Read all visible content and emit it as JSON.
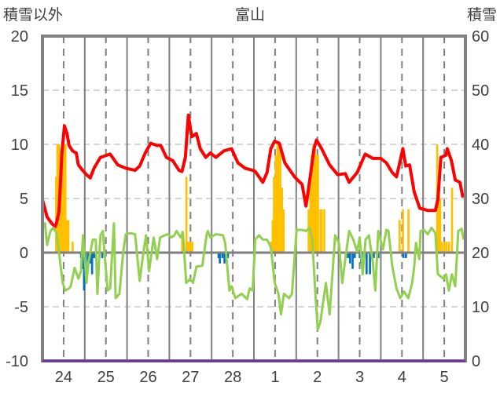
{
  "chart_data": {
    "type": "line",
    "title": "富山",
    "ylabel_left": "積雪以外",
    "ylabel_right": "積雪",
    "ylim_left": [
      -10,
      20
    ],
    "ylim_right": [
      0,
      60
    ],
    "yticks_left": [
      "-10",
      "-5",
      "0",
      "5",
      "10",
      "15",
      "20"
    ],
    "yticks_right": [
      "0",
      "10",
      "20",
      "30",
      "40",
      "50",
      "60"
    ],
    "xlim_days": [
      0,
      10
    ],
    "xticks": [
      "24",
      "25",
      "26",
      "27",
      "28",
      "1",
      "2",
      "3",
      "4",
      "5"
    ],
    "grid": true,
    "colors": {
      "temperature": "#ff0000",
      "green_series": "#92d050",
      "precip": "#ffc000",
      "snow_change": "#0070c0",
      "snow_depth": "#7030a0",
      "axis": "#808080"
    },
    "series": [
      {
        "name": "red",
        "axis": "left",
        "points": [
          [
            0,
            4.9
          ],
          [
            0.11,
            3.3
          ],
          [
            0.22,
            2.7
          ],
          [
            0.3,
            2.4
          ],
          [
            0.33,
            2.7
          ],
          [
            0.39,
            3.8
          ],
          [
            0.43,
            6.7
          ],
          [
            0.46,
            9.2
          ],
          [
            0.52,
            11.7
          ],
          [
            0.58,
            11
          ],
          [
            0.63,
            9.9
          ],
          [
            0.71,
            9.4
          ],
          [
            0.8,
            9.2
          ],
          [
            0.85,
            8.1
          ],
          [
            0.95,
            7.6
          ],
          [
            1.04,
            7.2
          ],
          [
            1.13,
            6.9
          ],
          [
            1.22,
            7.8
          ],
          [
            1.37,
            8.8
          ],
          [
            1.6,
            9.1
          ],
          [
            1.78,
            8.1
          ],
          [
            1.97,
            7.8
          ],
          [
            2.19,
            7.6
          ],
          [
            2.3,
            8.0
          ],
          [
            2.43,
            9.2
          ],
          [
            2.56,
            10.1
          ],
          [
            2.71,
            9.9
          ],
          [
            2.8,
            9.9
          ],
          [
            2.93,
            8.8
          ],
          [
            3.08,
            8.5
          ],
          [
            3.23,
            7.6
          ],
          [
            3.3,
            7.5
          ],
          [
            3.38,
            8.8
          ],
          [
            3.45,
            12.7
          ],
          [
            3.53,
            10.7
          ],
          [
            3.64,
            11
          ],
          [
            3.73,
            9.6
          ],
          [
            3.86,
            8.8
          ],
          [
            3.97,
            9.2
          ],
          [
            4.1,
            8.8
          ],
          [
            4.29,
            9.4
          ],
          [
            4.47,
            9.6
          ],
          [
            4.62,
            8.3
          ],
          [
            4.79,
            7.8
          ],
          [
            4.97,
            7.6
          ],
          [
            5.03,
            7.5
          ],
          [
            5.21,
            6.5
          ],
          [
            5.31,
            7.4
          ],
          [
            5.4,
            9.6
          ],
          [
            5.49,
            10.3
          ],
          [
            5.6,
            10.1
          ],
          [
            5.73,
            8.3
          ],
          [
            5.96,
            7.0
          ],
          [
            6.14,
            6.3
          ],
          [
            6.23,
            4.3
          ],
          [
            6.33,
            7.0
          ],
          [
            6.42,
            9.6
          ],
          [
            6.48,
            10.4
          ],
          [
            6.6,
            9.6
          ],
          [
            6.79,
            8.1
          ],
          [
            6.98,
            7.2
          ],
          [
            7.16,
            7.3
          ],
          [
            7.25,
            6.5
          ],
          [
            7.44,
            7.4
          ],
          [
            7.63,
            9.1
          ],
          [
            7.81,
            8.7
          ],
          [
            8.0,
            8.7
          ],
          [
            8.13,
            8.3
          ],
          [
            8.27,
            7.4
          ],
          [
            8.37,
            7.0
          ],
          [
            8.46,
            8.5
          ],
          [
            8.52,
            9.6
          ],
          [
            8.59,
            8.0
          ],
          [
            8.68,
            8.1
          ],
          [
            8.79,
            5.6
          ],
          [
            8.92,
            4.1
          ],
          [
            9.11,
            3.9
          ],
          [
            9.29,
            3.9
          ],
          [
            9.35,
            4.9
          ],
          [
            9.42,
            8.8
          ],
          [
            9.54,
            9.0
          ],
          [
            9.57,
            9.6
          ],
          [
            9.67,
            8.5
          ],
          [
            9.76,
            6.7
          ],
          [
            9.87,
            6.5
          ],
          [
            9.94,
            5.1
          ]
        ]
      },
      {
        "name": "green",
        "axis": "left",
        "points": [
          [
            0,
            2.3
          ],
          [
            0.06,
            2.7
          ],
          [
            0.11,
            0.7
          ],
          [
            0.19,
            2
          ],
          [
            0.26,
            2.3
          ],
          [
            0.33,
            1.8
          ],
          [
            0.41,
            -0.6
          ],
          [
            0.48,
            -2.8
          ],
          [
            0.54,
            -3.5
          ],
          [
            0.63,
            -3.3
          ],
          [
            0.67,
            -3.1
          ],
          [
            0.76,
            -1.4
          ],
          [
            0.85,
            -2.4
          ],
          [
            0.91,
            -1.7
          ],
          [
            0.96,
            1.6
          ],
          [
            1.04,
            -2.8
          ],
          [
            1.09,
            -0.9
          ],
          [
            1.19,
            1.2
          ],
          [
            1.26,
            1.2
          ],
          [
            1.3,
            -3.8
          ],
          [
            1.37,
            1.6
          ],
          [
            1.43,
            2
          ],
          [
            1.48,
            -0.6
          ],
          [
            1.54,
            -3.5
          ],
          [
            1.6,
            -3.3
          ],
          [
            1.69,
            2.7
          ],
          [
            1.73,
            -4.2
          ],
          [
            1.82,
            -3.8
          ],
          [
            1.91,
            0.1
          ],
          [
            1.97,
            1.7
          ],
          [
            2.08,
            1.8
          ],
          [
            2.19,
            1.7
          ],
          [
            2.3,
            -2.6
          ],
          [
            2.39,
            0.1
          ],
          [
            2.45,
            1.6
          ],
          [
            2.52,
            -1.7
          ],
          [
            2.63,
            1.4
          ],
          [
            2.71,
            -0.6
          ],
          [
            2.78,
            1.4
          ],
          [
            2.89,
            1.6
          ],
          [
            2.97,
            1.7
          ],
          [
            3.04,
            1.4
          ],
          [
            3.12,
            1.6
          ],
          [
            3.17,
            2
          ],
          [
            3.27,
            1.4
          ],
          [
            3.32,
            1.9
          ],
          [
            3.4,
            -2.8
          ],
          [
            3.49,
            -2.4
          ],
          [
            3.56,
            -2.8
          ],
          [
            3.64,
            -1.3
          ],
          [
            3.78,
            -1.2
          ],
          [
            3.88,
            1.6
          ],
          [
            3.91,
            2
          ],
          [
            3.97,
            1.4
          ],
          [
            4.1,
            1.7
          ],
          [
            4.27,
            1.6
          ],
          [
            4.32,
            0.9
          ],
          [
            4.42,
            -3.5
          ],
          [
            4.47,
            -3.1
          ],
          [
            4.56,
            -4.2
          ],
          [
            4.71,
            -3.8
          ],
          [
            4.84,
            -4.3
          ],
          [
            4.9,
            -3.3
          ],
          [
            4.97,
            -3.5
          ],
          [
            5.03,
            1.2
          ],
          [
            5.12,
            1.6
          ],
          [
            5.21,
            1.2
          ],
          [
            5.31,
            1.2
          ],
          [
            5.4,
            0.5
          ],
          [
            5.49,
            -2.8
          ],
          [
            5.58,
            -3.8
          ],
          [
            5.64,
            -5.7
          ],
          [
            5.71,
            -3.8
          ],
          [
            5.83,
            -4.2
          ],
          [
            5.9,
            -3.8
          ],
          [
            6.01,
            2.1
          ],
          [
            6.14,
            2.1
          ],
          [
            6.23,
            2
          ],
          [
            6.31,
            2.3
          ],
          [
            6.38,
            1.2
          ],
          [
            6.46,
            -4.2
          ],
          [
            6.51,
            -7.1
          ],
          [
            6.57,
            -6.4
          ],
          [
            6.7,
            -2.8
          ],
          [
            6.79,
            -5.7
          ],
          [
            6.92,
            1.6
          ],
          [
            7.01,
            0.9
          ],
          [
            7.09,
            -2.8
          ],
          [
            7.16,
            -0.6
          ],
          [
            7.25,
            2
          ],
          [
            7.35,
            1.2
          ],
          [
            7.44,
            0.1
          ],
          [
            7.5,
            1.4
          ],
          [
            7.57,
            -2.0
          ],
          [
            7.64,
            1.2
          ],
          [
            7.72,
            1.6
          ],
          [
            7.81,
            -0.9
          ],
          [
            7.87,
            -3.5
          ],
          [
            7.94,
            2
          ],
          [
            8.05,
            0.3
          ],
          [
            8.13,
            2.1
          ],
          [
            8.18,
            2
          ],
          [
            8.27,
            -1.2
          ],
          [
            8.37,
            -3.3
          ],
          [
            8.46,
            -4.2
          ],
          [
            8.55,
            -3.6
          ],
          [
            8.65,
            -4.2
          ],
          [
            8.74,
            -2.8
          ],
          [
            8.79,
            -1.3
          ],
          [
            8.83,
            0.9
          ],
          [
            8.91,
            -0.6
          ],
          [
            8.94,
            2
          ],
          [
            9.02,
            2.1
          ],
          [
            9.11,
            1.7
          ],
          [
            9.2,
            2.3
          ],
          [
            9.29,
            1.8
          ],
          [
            9.35,
            -2
          ],
          [
            9.48,
            -2.4
          ],
          [
            9.54,
            -2
          ],
          [
            9.61,
            -3.5
          ],
          [
            9.68,
            -2
          ],
          [
            9.76,
            -3.1
          ],
          [
            9.83,
            2
          ],
          [
            9.91,
            2.2
          ],
          [
            9.96,
            1.2
          ]
        ]
      },
      {
        "name": "snow-depth",
        "axis": "right",
        "points": [
          [
            0,
            0
          ],
          [
            10,
            0
          ]
        ]
      }
    ],
    "bars": [
      {
        "name": "orange",
        "axis": "left",
        "points": [
          [
            0.32,
            7
          ],
          [
            0.35,
            10
          ],
          [
            0.39,
            10
          ],
          [
            0.43,
            9
          ],
          [
            0.46,
            9
          ],
          [
            0.5,
            10
          ],
          [
            0.54,
            10
          ],
          [
            0.58,
            3
          ],
          [
            0.61,
            3
          ],
          [
            0.71,
            1
          ],
          [
            3.3,
            2
          ],
          [
            3.4,
            7
          ],
          [
            3.43,
            1
          ],
          [
            3.47,
            1
          ],
          [
            3.51,
            1
          ],
          [
            3.54,
            1
          ],
          [
            5.4,
            1
          ],
          [
            5.44,
            3
          ],
          [
            5.47,
            7
          ],
          [
            5.51,
            9
          ],
          [
            5.55,
            10
          ],
          [
            5.58,
            10
          ],
          [
            5.62,
            10
          ],
          [
            5.66,
            6
          ],
          [
            5.7,
            4
          ],
          [
            6.29,
            4
          ],
          [
            6.33,
            7
          ],
          [
            6.36,
            9
          ],
          [
            6.4,
            10
          ],
          [
            6.44,
            10
          ],
          [
            6.48,
            9
          ],
          [
            6.51,
            9
          ],
          [
            6.57,
            4
          ],
          [
            6.6,
            4
          ],
          [
            6.66,
            4
          ],
          [
            8.44,
            3
          ],
          [
            8.52,
            4
          ],
          [
            8.65,
            4
          ],
          [
            9.33,
            10
          ],
          [
            9.37,
            7
          ],
          [
            9.4,
            5
          ],
          [
            9.44,
            1
          ],
          [
            9.5,
            1
          ],
          [
            9.55,
            1
          ],
          [
            9.61,
            1
          ],
          [
            9.68,
            6
          ]
        ]
      },
      {
        "name": "blue",
        "axis": "left",
        "points": [
          [
            0.91,
            -0.5
          ],
          [
            0.95,
            -1.5
          ],
          [
            0.98,
            -3.5
          ],
          [
            1.02,
            -2.5
          ],
          [
            1.08,
            -1
          ],
          [
            1.13,
            -1
          ],
          [
            1.17,
            -2
          ],
          [
            1.22,
            -0.5
          ],
          [
            1.41,
            -0.5
          ],
          [
            4.16,
            -0.5
          ],
          [
            4.19,
            -1
          ],
          [
            4.25,
            -0.5
          ],
          [
            4.3,
            -1
          ],
          [
            4.38,
            -0.5
          ],
          [
            7.22,
            -0.5
          ],
          [
            7.27,
            -1
          ],
          [
            7.33,
            -1.5
          ],
          [
            7.38,
            -0.5
          ],
          [
            7.5,
            -0.5
          ],
          [
            7.53,
            -1
          ],
          [
            7.59,
            -0.5
          ],
          [
            7.66,
            -2
          ],
          [
            7.74,
            -2
          ],
          [
            7.83,
            -0.5
          ],
          [
            7.94,
            -0.5
          ],
          [
            8.53,
            -0.5
          ],
          [
            8.59,
            -0.5
          ]
        ]
      }
    ]
  }
}
